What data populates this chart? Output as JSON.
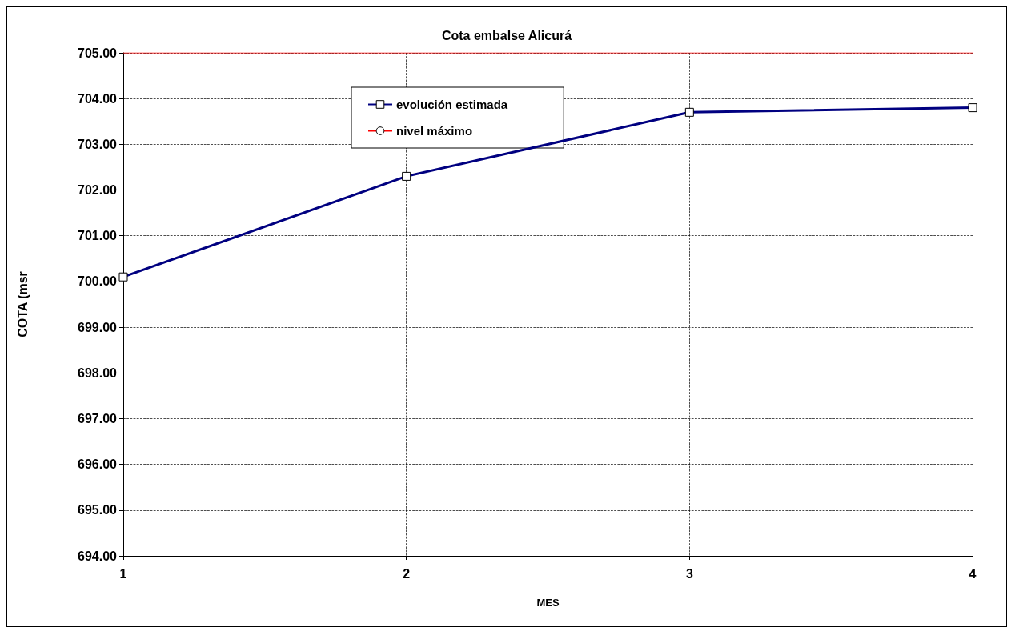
{
  "chart_data": {
    "type": "line",
    "title": "Cota embalse Alicurá",
    "xlabel": "MES",
    "ylabel": "COTA (msr",
    "x": [
      1,
      2,
      3,
      4
    ],
    "series": [
      {
        "name": "evolución estimada",
        "color": "#000080",
        "values": [
          700.1,
          702.3,
          703.7,
          703.8
        ],
        "marker": "square"
      },
      {
        "name": "nivel máximo",
        "color": "#ff0000",
        "values": [
          705,
          705,
          705,
          705
        ],
        "marker": "none"
      }
    ],
    "xlim": [
      1,
      4
    ],
    "xticks": [
      1,
      2,
      3,
      4
    ],
    "ylim": [
      694,
      705
    ],
    "yticks": [
      {
        "value": 694,
        "label": "694.00"
      },
      {
        "value": 695,
        "label": "695.00"
      },
      {
        "value": 696,
        "label": "696.00"
      },
      {
        "value": 697,
        "label": "697.00"
      },
      {
        "value": 698,
        "label": "698.00"
      },
      {
        "value": 699,
        "label": "699.00"
      },
      {
        "value": 700,
        "label": "700.00"
      },
      {
        "value": 701,
        "label": "701.00"
      },
      {
        "value": 702,
        "label": "702.00"
      },
      {
        "value": 703,
        "label": "703.00"
      },
      {
        "value": 704,
        "label": "704.00"
      },
      {
        "value": 705,
        "label": "705.00"
      }
    ],
    "grid": true,
    "legend": "top",
    "line_style": "solid"
  }
}
